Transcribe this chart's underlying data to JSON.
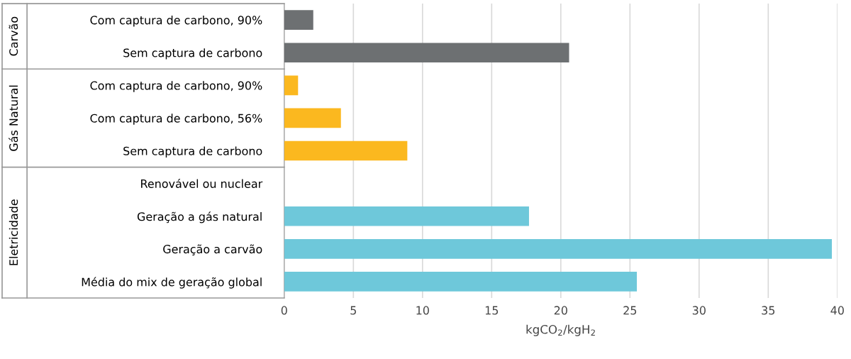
{
  "chart_data": {
    "type": "bar",
    "orientation": "horizontal",
    "categories": [
      "Com captura de carbono, 90%",
      "Sem captura de carbono",
      "Com captura de carbono, 90%",
      "Com captura de carbono, 56%",
      "Sem captura de carbono",
      "Renovável ou nuclear",
      "Geração a gás natural",
      "Geração a carvão",
      "Média do mix de geração global"
    ],
    "values": [
      2.1,
      20.6,
      1.0,
      4.1,
      8.9,
      0,
      17.7,
      39.6,
      25.5
    ],
    "colors": [
      "#6d7072",
      "#6d7072",
      "#fbb81f",
      "#fbb81f",
      "#fbb81f",
      "#6ec8da",
      "#6ec8da",
      "#6ec8da",
      "#6ec8da"
    ],
    "xlabel": "kgCO$_{2}$/kgH$_{2}$",
    "xlim": [
      0,
      40
    ],
    "xticks": [
      0,
      5,
      10,
      15,
      20,
      25,
      30,
      35,
      40
    ],
    "grid": "x",
    "annotations": [
      "Carvão",
      "Gás Natural",
      "Eletricidade"
    ]
  }
}
